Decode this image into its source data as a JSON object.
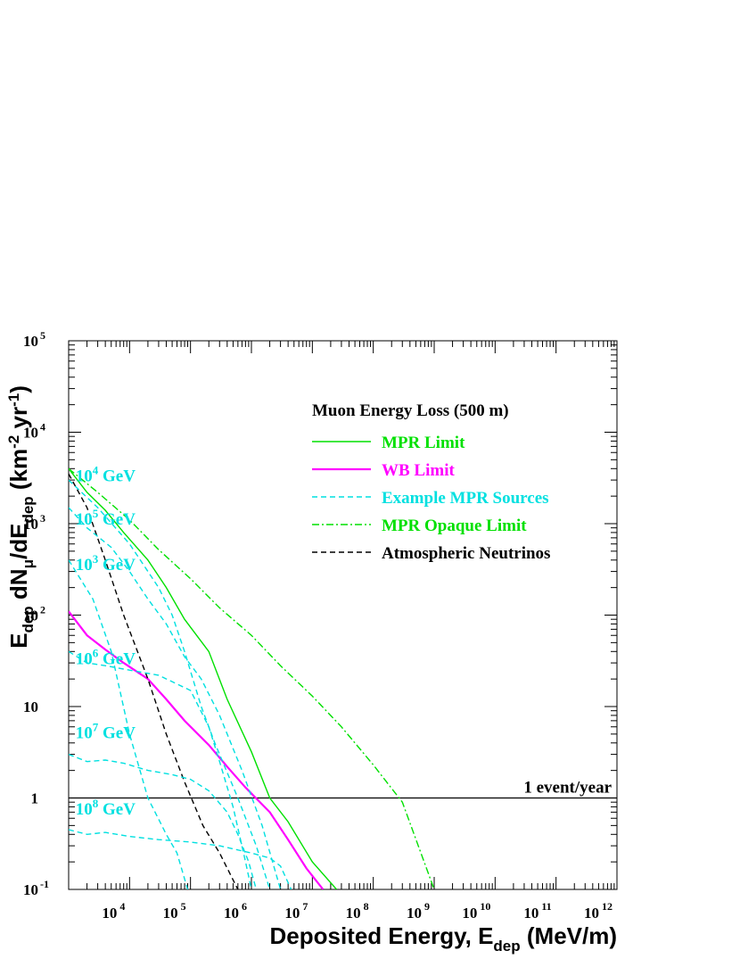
{
  "chart_data": {
    "type": "line",
    "title": "",
    "xlabel": "Deposited Energy, E_dep (MeV/m)",
    "xlabel_parts": [
      "Deposited Energy, E",
      "dep",
      " (MeV/m)"
    ],
    "ylabel": "E_dep dN_μ/dE_dep (km^-2 yr^-1)",
    "x_scale": "log",
    "y_scale": "log",
    "xlim": [
      1000,
      1000000000000
    ],
    "ylim": [
      0.1,
      100000
    ],
    "x_ticks": [
      {
        "value": 10000,
        "base": "10",
        "exp": "4"
      },
      {
        "value": 100000,
        "base": "10",
        "exp": "5"
      },
      {
        "value": 1000000,
        "base": "10",
        "exp": "6"
      },
      {
        "value": 10000000,
        "base": "10",
        "exp": "7"
      },
      {
        "value": 100000000,
        "base": "10",
        "exp": "8"
      },
      {
        "value": 1000000000,
        "base": "10",
        "exp": "9"
      },
      {
        "value": 10000000000,
        "base": "10",
        "exp": "10"
      },
      {
        "value": 100000000000,
        "base": "10",
        "exp": "11"
      },
      {
        "value": 1000000000000,
        "base": "10",
        "exp": "12"
      }
    ],
    "y_ticks": [
      {
        "value": 0.1,
        "base": "10",
        "exp": "-1"
      },
      {
        "value": 1,
        "base": "1",
        "exp": ""
      },
      {
        "value": 10,
        "base": "10",
        "exp": ""
      },
      {
        "value": 100,
        "base": "10",
        "exp": "2"
      },
      {
        "value": 1000,
        "base": "10",
        "exp": "3"
      },
      {
        "value": 10000,
        "base": "10",
        "exp": "4"
      },
      {
        "value": 100000,
        "base": "10",
        "exp": "5"
      }
    ],
    "legend": {
      "title": "Muon Energy Loss (500 m)",
      "position": "top-right",
      "entries": [
        {
          "label": "MPR Limit",
          "color": "#00e000",
          "dash": "solid"
        },
        {
          "label": "WB Limit",
          "color": "#ff00ff",
          "dash": "solid"
        },
        {
          "label": "Example MPR Sources",
          "color": "#00e0e0",
          "dash": "dashed"
        },
        {
          "label": "MPR Opaque Limit",
          "color": "#00e000",
          "dash": "dashdot"
        },
        {
          "label": "Atmospheric Neutrinos",
          "color": "#000000",
          "dash": "dashed"
        }
      ]
    },
    "reference_line": {
      "y": 1,
      "label": "1 event/year",
      "color": "#000000"
    },
    "series": [
      {
        "name": "MPR Limit",
        "color": "#00e000",
        "dash": "solid",
        "x": [
          1000,
          2000,
          4000,
          8000,
          20000,
          40000,
          80000,
          200000,
          400000,
          1000000,
          2000000,
          4000000,
          10000000,
          25000000
        ],
        "y": [
          4000,
          2200,
          1400,
          800,
          400,
          200,
          90,
          40,
          12,
          3.2,
          1,
          0.55,
          0.2,
          0.1
        ]
      },
      {
        "name": "WB Limit",
        "color": "#ff00ff",
        "dash": "solid",
        "x": [
          1000,
          2000,
          4000,
          8000,
          20000,
          40000,
          80000,
          200000,
          400000,
          800000,
          2000000,
          4000000,
          8000000,
          15000000
        ],
        "y": [
          110,
          60,
          42,
          30,
          20,
          12,
          7,
          3.8,
          2.2,
          1.3,
          0.7,
          0.35,
          0.17,
          0.1
        ]
      },
      {
        "name": "MPR Opaque Limit",
        "color": "#00e000",
        "dash": "dashdot",
        "x": [
          1000,
          3000,
          10000,
          30000,
          100000,
          300000,
          1000000,
          3000000,
          10000000,
          30000000,
          100000000,
          300000000,
          1000000000
        ],
        "y": [
          4000,
          2200,
          1100,
          520,
          250,
          120,
          60,
          28,
          13,
          6,
          2.3,
          0.9,
          0.1
        ]
      },
      {
        "name": "Atmospheric Neutrinos",
        "color": "#000000",
        "dash": "dashed",
        "x": [
          1000,
          2000,
          4000,
          8000,
          20000,
          40000,
          80000,
          160000,
          300000,
          600000
        ],
        "y": [
          3500,
          1500,
          400,
          100,
          20,
          5,
          1.5,
          0.5,
          0.25,
          0.1
        ]
      },
      {
        "name": "10^3 GeV",
        "color": "#00e0e0",
        "dash": "dashed",
        "x": [
          1000,
          2500,
          5000,
          10000,
          20000,
          40000,
          60000,
          90000
        ],
        "y": [
          400,
          150,
          40,
          5,
          1,
          0.4,
          0.25,
          0.1
        ]
      },
      {
        "name": "10^4 GeV",
        "color": "#00e0e0",
        "dash": "dashed",
        "x": [
          1000,
          3000,
          10000,
          30000,
          50000,
          80000,
          150000,
          250000,
          600000,
          1200000,
          2000000
        ],
        "y": [
          3000,
          1500,
          600,
          200,
          100,
          40,
          10,
          4,
          1,
          0.3,
          0.1
        ]
      },
      {
        "name": "10^5 GeV",
        "color": "#00e0e0",
        "dash": "dashed",
        "x": [
          1000,
          2000,
          5000,
          10000,
          20000,
          40000,
          80000,
          150000,
          300000,
          700000,
          1500000,
          3000000
        ],
        "y": [
          1500,
          900,
          550,
          300,
          150,
          80,
          35,
          20,
          8,
          2,
          0.5,
          0.1
        ]
      },
      {
        "name": "10^6 GeV",
        "color": "#00e0e0",
        "dash": "dashed",
        "x": [
          1000,
          2000,
          4000,
          10000,
          30000,
          100000,
          200000,
          300000,
          500000,
          800000,
          1000000
        ],
        "y": [
          40,
          30,
          28,
          25,
          22,
          15,
          6,
          2.5,
          0.8,
          0.2,
          0.1
        ]
      },
      {
        "name": "10^7 GeV",
        "color": "#00e0e0",
        "dash": "dashed",
        "x": [
          1000,
          2000,
          4000,
          8000,
          20000,
          50000,
          100000,
          200000,
          400000,
          600000,
          900000,
          1200000
        ],
        "y": [
          3,
          2.5,
          2.6,
          2.4,
          2,
          1.8,
          1.6,
          1.2,
          0.7,
          0.4,
          0.2,
          0.1
        ]
      },
      {
        "name": "10^8 GeV",
        "color": "#00e0e0",
        "dash": "dashed",
        "x": [
          1000,
          2000,
          4000,
          10000,
          30000,
          100000,
          300000,
          1000000,
          2000000,
          3000000,
          4500000
        ],
        "y": [
          0.45,
          0.4,
          0.42,
          0.38,
          0.35,
          0.33,
          0.3,
          0.25,
          0.22,
          0.18,
          0.1
        ]
      }
    ],
    "curve_labels": [
      {
        "base": "10",
        "exp": "4",
        "unit": " GeV",
        "x": 1300,
        "y": 2900
      },
      {
        "base": "10",
        "exp": "5",
        "unit": " GeV",
        "x": 1300,
        "y": 980
      },
      {
        "base": "10",
        "exp": "3",
        "unit": " GeV",
        "x": 1300,
        "y": 310
      },
      {
        "base": "10",
        "exp": "6",
        "unit": " GeV",
        "x": 1300,
        "y": 29
      },
      {
        "base": "10",
        "exp": "7",
        "unit": " GeV",
        "x": 1300,
        "y": 4.5
      },
      {
        "base": "10",
        "exp": "8",
        "unit": " GeV",
        "x": 1300,
        "y": 0.66
      }
    ],
    "label_color": "#00e0e0"
  }
}
